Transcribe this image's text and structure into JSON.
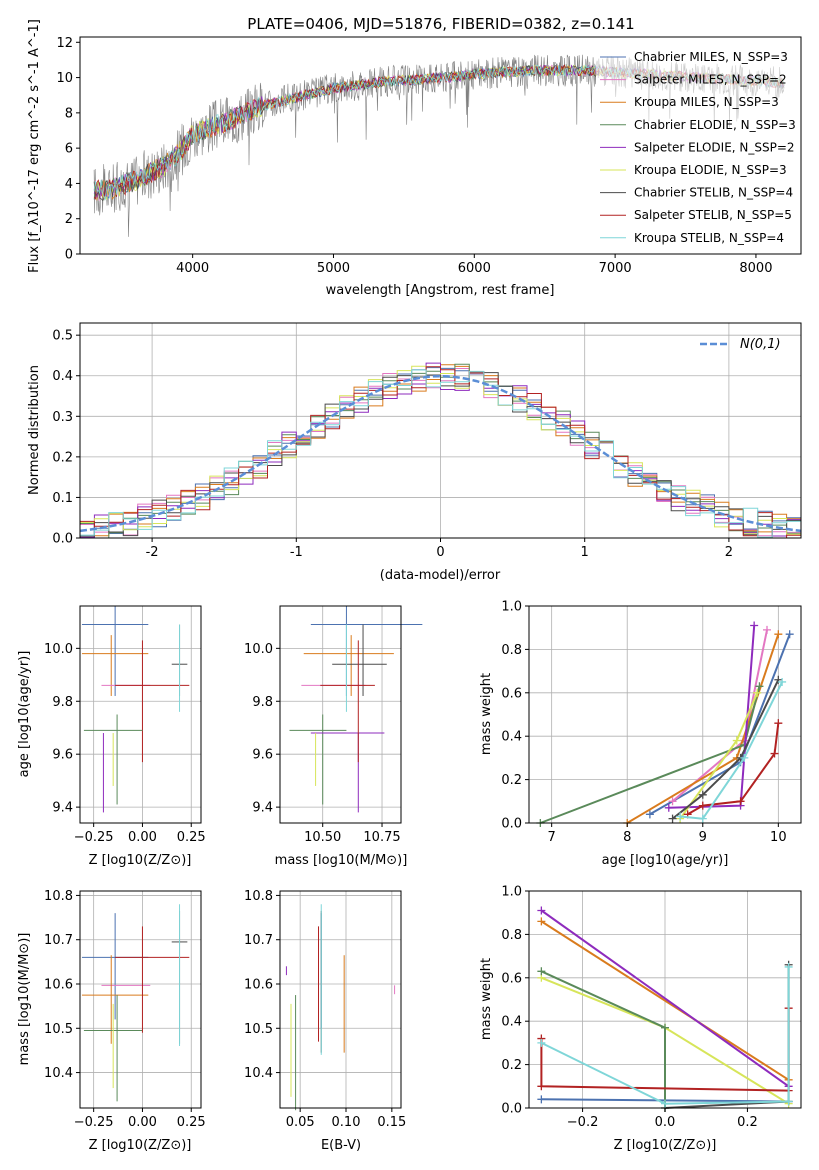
{
  "title": "PLATE=0406, MJD=51876, FIBERID=0382, z=0.141",
  "series_colors": {
    "Chabrier MILES": "#4c72b0",
    "Salpeter MILES": "#e377c2",
    "Kroupa MILES": "#d97b1d",
    "Chabrier ELODIE": "#5a8a5a",
    "Salpeter ELODIE": "#8e2bbd",
    "Kroupa ELODIE": "#d7e55a",
    "Chabrier STELIB": "#4b4b4b",
    "Salpeter STELIB": "#b22222",
    "Kroupa STELIB": "#7fd6d8",
    "data": "#808080",
    "gaussian": "#5b8ed6",
    "mass_weight_blue": "#5b7fd6"
  },
  "chart_data": [
    {
      "id": "spectrum",
      "type": "line",
      "xlabel": "wavelength [Angstrom, rest frame]",
      "ylabel": "Flux [f_λ10^-17 erg cm^-2 s^-1 A^-1]",
      "xlim": [
        3200,
        8320
      ],
      "ylim": [
        0,
        12.3
      ],
      "xticks": [
        4000,
        5000,
        6000,
        7000,
        8000
      ],
      "yticks": [
        0,
        2,
        4,
        6,
        8,
        10,
        12
      ],
      "legend_position": "top-right",
      "legend": [
        "Chabrier MILES, N_SSP=3",
        "Salpeter MILES, N_SSP=2",
        "Kroupa MILES, N_SSP=3",
        "Chabrier ELODIE, N_SSP=3",
        "Salpeter ELODIE, N_SSP=2",
        "Kroupa ELODIE, N_SSP=3",
        "Chabrier STELIB, N_SSP=4",
        "Salpeter STELIB, N_SSP=5",
        "Kroupa STELIB, N_SSP=4"
      ],
      "continuum": {
        "x": [
          3300,
          3400,
          3500,
          3600,
          3700,
          3800,
          3900,
          4000,
          4100,
          4200,
          4300,
          4400,
          4500,
          4600,
          4700,
          4800,
          4900,
          5000,
          5200,
          5400,
          5600,
          5800,
          6000,
          6200,
          6400,
          6600,
          6800,
          7000,
          7200,
          7400,
          7600,
          7800,
          8000,
          8200
        ],
        "y": [
          3.6,
          3.6,
          3.9,
          4.2,
          4.6,
          5.0,
          5.7,
          6.8,
          7.1,
          7.4,
          7.7,
          8.1,
          8.4,
          8.6,
          8.8,
          9.0,
          9.2,
          9.4,
          9.6,
          9.8,
          9.9,
          10.0,
          10.2,
          10.3,
          10.4,
          10.4,
          10.4,
          10.3,
          10.2,
          10.1,
          10.0,
          9.9,
          9.8,
          9.7
        ]
      }
    },
    {
      "id": "residual_hist",
      "type": "line",
      "xlabel": "(data-model)/error",
      "ylabel": "Normed distribution",
      "xlim": [
        -2.5,
        2.5
      ],
      "ylim": [
        0,
        0.53
      ],
      "xticks": [
        -2,
        -1,
        0,
        1,
        2
      ],
      "yticks": [
        0.0,
        0.1,
        0.2,
        0.3,
        0.4,
        0.5
      ],
      "legend": [
        "N(0,1)"
      ],
      "legend_position": "top-right",
      "bin_width": 0.1
    },
    {
      "id": "age_vs_Z",
      "type": "scatter",
      "xlabel": "Z [log10(Z/Z⊙)]",
      "ylabel": "age [log10(age/yr)]",
      "xlim": [
        -0.32,
        0.3
      ],
      "ylim": [
        9.34,
        10.16
      ],
      "xticks": [
        -0.25,
        0.0,
        0.25
      ],
      "xtick_labels": [
        "−0.25",
        "0.00",
        "0.25"
      ],
      "yticks": [
        9.4,
        9.6,
        9.8,
        10.0
      ],
      "points": [
        {
          "series": "Chabrier MILES",
          "x": -0.14,
          "xerr": [
            0.17,
            0.17
          ],
          "y": 10.09,
          "yerr": [
            0.27,
            0.07
          ]
        },
        {
          "series": "Kroupa MILES",
          "x": -0.16,
          "xerr": [
            0.15,
            0.19
          ],
          "y": 9.98,
          "yerr": [
            0.16,
            0.07
          ]
        },
        {
          "series": "Chabrier STELIB",
          "x": 0.19,
          "xerr": [
            0.04,
            0.04
          ],
          "y": 9.94,
          "yerr": [
            0.12,
            0.15
          ]
        },
        {
          "series": "Salpeter MILES",
          "x": -0.09,
          "xerr": [
            0.12,
            0.13
          ],
          "y": 9.86,
          "yerr": [
            0.0,
            0.0
          ]
        },
        {
          "series": "Salpeter STELIB",
          "x": 0.0,
          "xerr": [
            0.14,
            0.24
          ],
          "y": 9.86,
          "yerr": [
            0.29,
            0.17
          ]
        },
        {
          "series": "Kroupa STELIB",
          "x": 0.19,
          "xerr": [
            0.0,
            0.0
          ],
          "y": 9.94,
          "yerr": [
            0.18,
            0.15
          ]
        },
        {
          "series": "Chabrier ELODIE",
          "x": -0.13,
          "xerr": [
            0.17,
            0.13
          ],
          "y": 9.69,
          "yerr": [
            0.28,
            0.06
          ]
        },
        {
          "series": "Salpeter ELODIE",
          "x": -0.2,
          "xerr": [
            0.0,
            0.0
          ],
          "y": 9.68,
          "yerr": [
            0.3,
            0.0
          ]
        },
        {
          "series": "Kroupa ELODIE",
          "x": -0.15,
          "xerr": [
            0.0,
            0.0
          ],
          "y": 9.68,
          "yerr": [
            0.2,
            0.0
          ]
        }
      ]
    },
    {
      "id": "age_vs_mass",
      "type": "scatter",
      "xlabel": "mass [log10(M/M⊙)]",
      "ylabel": "",
      "xlim": [
        10.32,
        10.83
      ],
      "ylim": [
        9.34,
        10.16
      ],
      "xticks": [
        10.5,
        10.75
      ],
      "xtick_labels": [
        "10.50",
        "10.75"
      ],
      "yticks": [
        9.4,
        9.6,
        9.8,
        10.0
      ]
    },
    {
      "id": "massweight_vs_age",
      "type": "line",
      "xlabel": "age [log10(age/yr)]",
      "ylabel": "mass weight",
      "xlim": [
        6.7,
        10.3
      ],
      "ylim": [
        0,
        1.0
      ],
      "xticks": [
        7,
        8,
        9,
        10
      ],
      "yticks": [
        0.0,
        0.2,
        0.4,
        0.6,
        0.8,
        1.0
      ],
      "series": [
        {
          "name": "Chabrier MILES",
          "x": [
            8.3,
            9.5,
            10.15
          ],
          "y": [
            0.04,
            0.28,
            0.87
          ]
        },
        {
          "name": "Salpeter MILES",
          "x": [
            8.6,
            9.55,
            9.85
          ],
          "y": [
            0.1,
            0.38,
            0.89
          ]
        },
        {
          "name": "Kroupa MILES",
          "x": [
            8.0,
            9.45,
            10.0
          ],
          "y": [
            0.0,
            0.3,
            0.87
          ]
        },
        {
          "name": "Chabrier ELODIE",
          "x": [
            6.85,
            9.55,
            9.75
          ],
          "y": [
            0.0,
            0.36,
            0.63
          ]
        },
        {
          "name": "Salpeter ELODIE",
          "x": [
            8.55,
            9.5,
            9.68
          ],
          "y": [
            0.07,
            0.08,
            0.91
          ]
        },
        {
          "name": "Kroupa ELODIE",
          "x": [
            8.7,
            9.45,
            9.72
          ],
          "y": [
            0.02,
            0.38,
            0.6
          ]
        },
        {
          "name": "Chabrier STELIB",
          "x": [
            8.6,
            9.0,
            9.5,
            10.0
          ],
          "y": [
            0.02,
            0.13,
            0.3,
            0.66
          ]
        },
        {
          "name": "Salpeter STELIB",
          "x": [
            8.8,
            9.0,
            9.5,
            9.95,
            10.0
          ],
          "y": [
            0.04,
            0.08,
            0.1,
            0.32,
            0.46
          ]
        },
        {
          "name": "Kroupa STELIB",
          "x": [
            8.7,
            9.0,
            9.55,
            10.05
          ],
          "y": [
            0.03,
            0.02,
            0.3,
            0.65
          ]
        }
      ]
    },
    {
      "id": "mass_vs_Z",
      "type": "scatter",
      "xlabel": "Z [log10(Z/Z⊙)]",
      "ylabel": "mass [log10(M/M⊙)]",
      "xlim": [
        -0.32,
        0.3
      ],
      "ylim": [
        10.32,
        10.81
      ],
      "xticks": [
        -0.25,
        0.0,
        0.25
      ],
      "xtick_labels": [
        "−0.25",
        "0.00",
        "0.25"
      ],
      "yticks": [
        10.4,
        10.5,
        10.6,
        10.7,
        10.8
      ]
    },
    {
      "id": "mass_vs_ebv",
      "type": "scatter",
      "xlabel": "E(B-V)",
      "ylabel": "",
      "xlim": [
        0.028,
        0.16
      ],
      "ylim": [
        10.32,
        10.81
      ],
      "xticks": [
        0.05,
        0.1,
        0.15
      ],
      "xtick_labels": [
        "0.05",
        "0.10",
        "0.15"
      ],
      "yticks": [
        10.4,
        10.5,
        10.6,
        10.7,
        10.8
      ]
    },
    {
      "id": "massweight_vs_Z",
      "type": "line",
      "xlabel": "Z [log10(Z/Z⊙)]",
      "ylabel": "mass weight",
      "xlim": [
        -0.33,
        0.33
      ],
      "ylim": [
        0,
        1.0
      ],
      "xticks": [
        -0.2,
        0.0,
        0.2
      ],
      "xtick_labels": [
        "−0.2",
        "0.0",
        "0.2"
      ],
      "yticks": [
        0.0,
        0.2,
        0.4,
        0.6,
        0.8,
        1.0
      ],
      "series": [
        {
          "name": "Chabrier MILES",
          "x": [
            -0.3,
            0.3
          ],
          "y": [
            0.04,
            0.03
          ]
        },
        {
          "name": "Kroupa MILES",
          "x": [
            -0.3,
            0.3
          ],
          "y": [
            0.86,
            0.13
          ]
        },
        {
          "name": "Salpeter ELODIE",
          "x": [
            -0.3,
            0.3
          ],
          "y": [
            0.91,
            0.1
          ]
        },
        {
          "name": "Kroupa ELODIE",
          "x": [
            -0.3,
            0.0,
            0.3
          ],
          "y": [
            0.6,
            0.37,
            0.02
          ]
        },
        {
          "name": "Chabrier ELODIE",
          "x": [
            -0.3,
            0.0,
            0.0
          ],
          "y": [
            0.63,
            0.37,
            0.0
          ]
        },
        {
          "name": "Chabrier STELIB",
          "x": [
            0.0,
            0.3,
            0.3
          ],
          "y": [
            0.0,
            0.03,
            0.66
          ]
        },
        {
          "name": "Salpeter STELIB",
          "x": [
            -0.3,
            -0.3,
            0.3,
            0.3
          ],
          "y": [
            0.32,
            0.1,
            0.08,
            0.46
          ]
        },
        {
          "name": "Kroupa STELIB",
          "x": [
            -0.3,
            0.0,
            0.3,
            0.3
          ],
          "y": [
            0.3,
            0.02,
            0.03,
            0.65
          ]
        }
      ]
    }
  ]
}
